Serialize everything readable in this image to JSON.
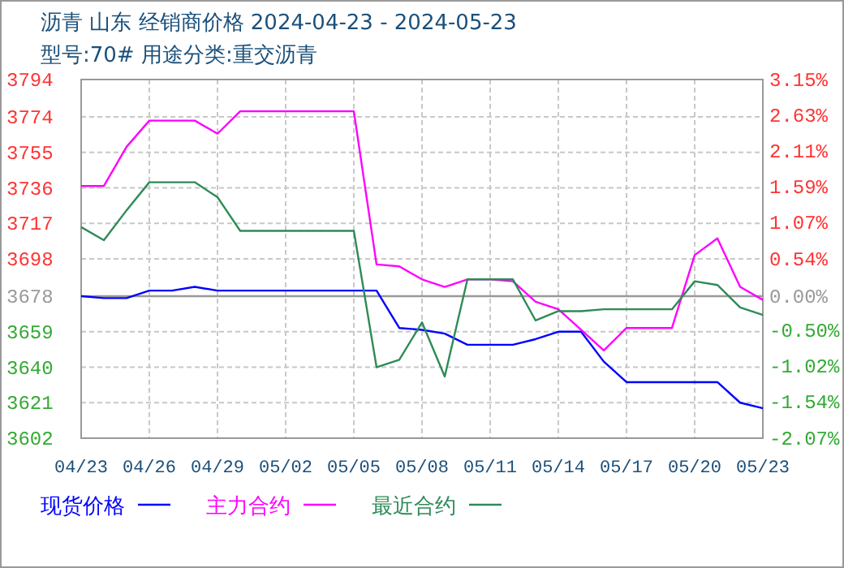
{
  "chart_data": {
    "type": "line",
    "title": "沥青 山东 经销商价格 2024-04-23 - 2024-05-23",
    "subtitle": "型号:70# 用途分类:重交沥青",
    "x": [
      "2024-04-23",
      "2024-04-24",
      "2024-04-25",
      "2024-04-26",
      "2024-04-27",
      "2024-04-28",
      "2024-04-29",
      "2024-04-30",
      "2024-05-01",
      "2024-05-02",
      "2024-05-03",
      "2024-05-04",
      "2024-05-05",
      "2024-05-06",
      "2024-05-07",
      "2024-05-08",
      "2024-05-09",
      "2024-05-10",
      "2024-05-11",
      "2024-05-12",
      "2024-05-13",
      "2024-05-14",
      "2024-05-15",
      "2024-05-16",
      "2024-05-17",
      "2024-05-18",
      "2024-05-19",
      "2024-05-20",
      "2024-05-21",
      "2024-05-22",
      "2024-05-23"
    ],
    "series": [
      {
        "name": "现货价格",
        "color": "#0000ff",
        "values": [
          3678,
          3677,
          3677,
          3681,
          3681,
          3683,
          3681,
          3681,
          3681,
          3681,
          3681,
          3681,
          3681,
          3681,
          3661,
          3660,
          3658,
          3652,
          3652,
          3652,
          3655,
          3659,
          3659,
          3643,
          3632,
          3632,
          3632,
          3632,
          3632,
          3621,
          3618
        ]
      },
      {
        "name": "主力合约",
        "color": "#ff00ff",
        "values": [
          3737,
          3737,
          3758,
          3772,
          3772,
          3772,
          3765,
          3777,
          3777,
          3777,
          3777,
          3777,
          3777,
          3695,
          3694,
          3687,
          3683,
          3687,
          3687,
          3686,
          3675,
          3671,
          3660,
          3649,
          3661,
          3661,
          3661,
          3700,
          3709,
          3683,
          3676
        ]
      },
      {
        "name": "最近合约",
        "color": "#2e8b57",
        "values": [
          3715,
          3708,
          3724,
          3739,
          3739,
          3739,
          3731,
          3713,
          3713,
          3713,
          3713,
          3713,
          3713,
          3640,
          3644,
          3664,
          3635,
          3687,
          3687,
          3687,
          3665,
          3670,
          3670,
          3671,
          3671,
          3671,
          3671,
          3686,
          3684,
          3672,
          3668
        ]
      }
    ],
    "xlim": [
      "2024-04-23",
      "2024-05-23"
    ],
    "xticks": [
      {
        "value": "2024-04-23",
        "label": "04/23"
      },
      {
        "value": "2024-04-26",
        "label": "04/26"
      },
      {
        "value": "2024-04-29",
        "label": "04/29"
      },
      {
        "value": "2024-05-02",
        "label": "05/02"
      },
      {
        "value": "2024-05-05",
        "label": "05/05"
      },
      {
        "value": "2024-05-08",
        "label": "05/08"
      },
      {
        "value": "2024-05-11",
        "label": "05/11"
      },
      {
        "value": "2024-05-14",
        "label": "05/14"
      },
      {
        "value": "2024-05-17",
        "label": "05/17"
      },
      {
        "value": "2024-05-20",
        "label": "05/20"
      },
      {
        "value": "2024-05-23",
        "label": "05/23"
      }
    ],
    "ylim": [
      3602,
      3794
    ],
    "yticks": [
      3602,
      3621,
      3640,
      3659,
      3678,
      3698,
      3717,
      3736,
      3755,
      3774,
      3794
    ],
    "y2lim": [
      -2.07,
      3.15
    ],
    "y2ticks": [
      {
        "value": -2.07,
        "label": "-2.07%"
      },
      {
        "value": -1.54,
        "label": "-1.54%"
      },
      {
        "value": -1.02,
        "label": "-1.02%"
      },
      {
        "value": -0.5,
        "label": "-0.50%"
      },
      {
        "value": 0,
        "label": "0.00%"
      },
      {
        "value": 0.54,
        "label": "0.54%"
      },
      {
        "value": 1.07,
        "label": "1.07%"
      },
      {
        "value": 1.59,
        "label": "1.59%"
      },
      {
        "value": 2.11,
        "label": "2.11%"
      },
      {
        "value": 2.63,
        "label": "2.63%"
      },
      {
        "value": 3.15,
        "label": "3.15%"
      }
    ],
    "ref_lines": [
      {
        "axis": "y",
        "value": 3678,
        "color": "#999999"
      }
    ],
    "grid": true,
    "legend": "bottom",
    "marker": "none",
    "line_style": "solid"
  }
}
